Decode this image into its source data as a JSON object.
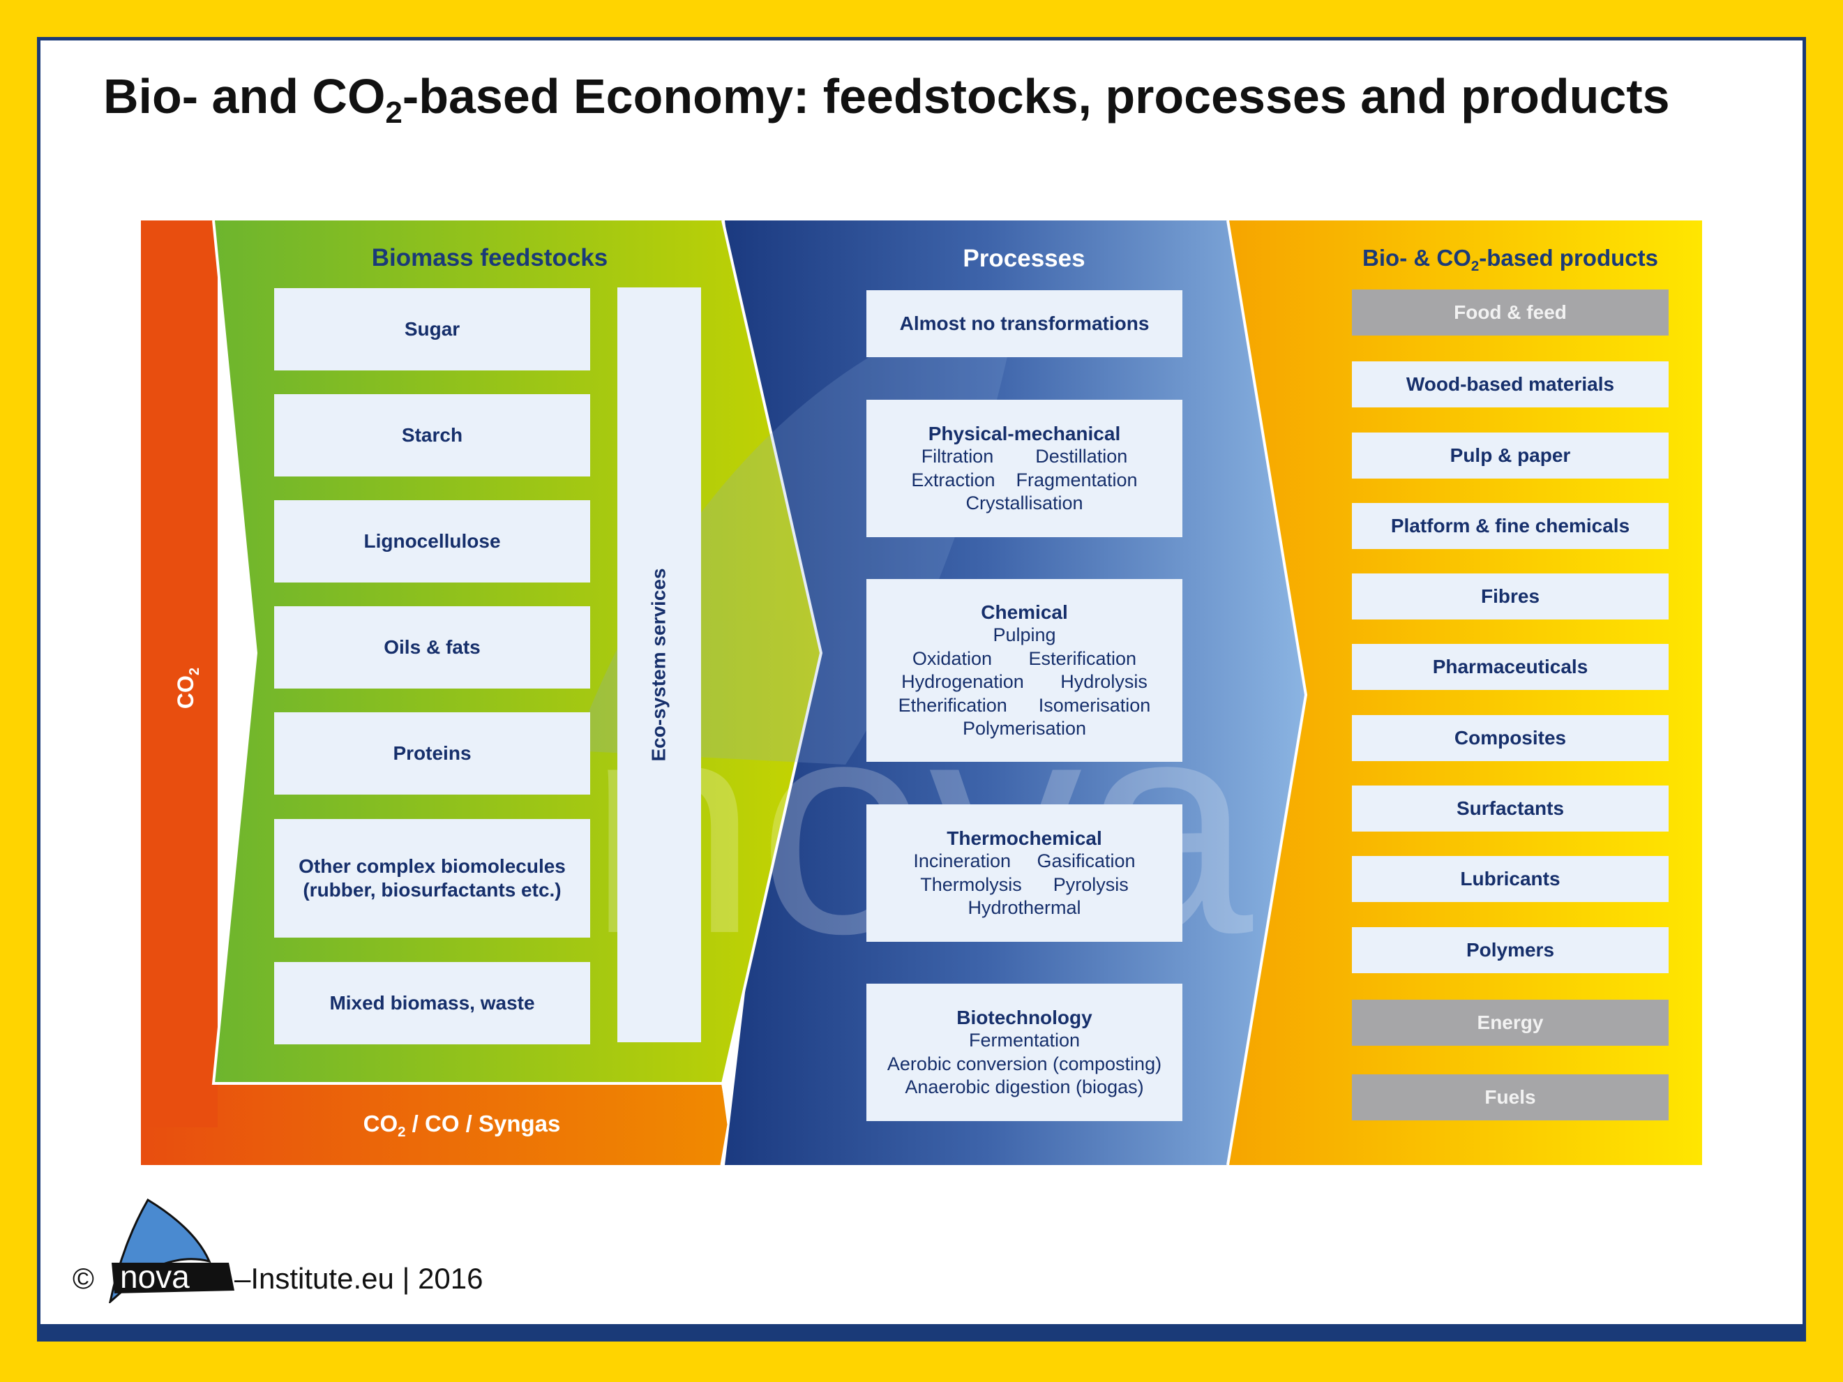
{
  "title": {
    "prefix": "Bio- and CO",
    "subscript": "2",
    "suffix": "-based Economy: feedstocks, processes and products"
  },
  "co2_side": {
    "text": "CO",
    "subscript": "2"
  },
  "co2_bottom": {
    "prefix": "CO",
    "subscript": "2",
    "suffix": " / CO / Syngas"
  },
  "feedstocks": {
    "title": "Biomass feedstocks",
    "items": [
      "Sugar",
      "Starch",
      "Lignocellulose",
      "Oils & fats",
      "Proteins",
      "Other complex biomolecules",
      "(rubber, biosurfactants etc.)",
      "Mixed biomass, waste"
    ],
    "eco_services": "Eco-system services"
  },
  "processes": {
    "title": "Processes",
    "none": "Almost no transformations",
    "physical": {
      "title": "Physical-mechanical",
      "lines": [
        "Filtration        Destillation",
        "Extraction    Fragmentation",
        "Crystallisation"
      ]
    },
    "chemical": {
      "title": "Chemical",
      "lines": [
        "Pulping",
        "Oxidation       Esterification",
        "Hydrogenation       Hydrolysis",
        "Etherification      Isomerisation",
        "Polymerisation"
      ]
    },
    "thermochemical": {
      "title": "Thermochemical",
      "lines": [
        "Incineration     Gasification",
        "Thermolysis      Pyrolysis",
        "Hydrothermal"
      ]
    },
    "biotechnology": {
      "title": "Biotechnology",
      "lines": [
        "Fermentation",
        "Aerobic conversion (composting)",
        "Anaerobic digestion (biogas)"
      ]
    }
  },
  "products": {
    "title_prefix": "Bio- & CO",
    "title_subscript": "2",
    "title_suffix": "-based products",
    "items": [
      "Food & feed",
      "Wood-based materials",
      "Pulp & paper",
      "Platform & fine chemicals",
      "Fibres",
      "Pharmaceuticals",
      "Composites",
      "Surfactants",
      "Lubricants",
      "Polymers",
      "Energy",
      "Fuels"
    ]
  },
  "footer": {
    "copyright": "©",
    "logo_text": "nova",
    "rest": "–Institute.eu | 2016"
  },
  "watermark": "nova",
  "colors": {
    "frame": "#FFD400",
    "navy": "#1A3A78",
    "co2_orange": "#E84E0F",
    "green_start": "#6DB52E",
    "green_end": "#C6D400",
    "blue_start": "#1B3A80",
    "blue_end": "#8BB4E2",
    "orange_start": "#F6A400",
    "yellow_end": "#FFE600",
    "box": "#EAF1FA",
    "box_text": "#162F6B",
    "grey_box": "#A6A6A8"
  }
}
